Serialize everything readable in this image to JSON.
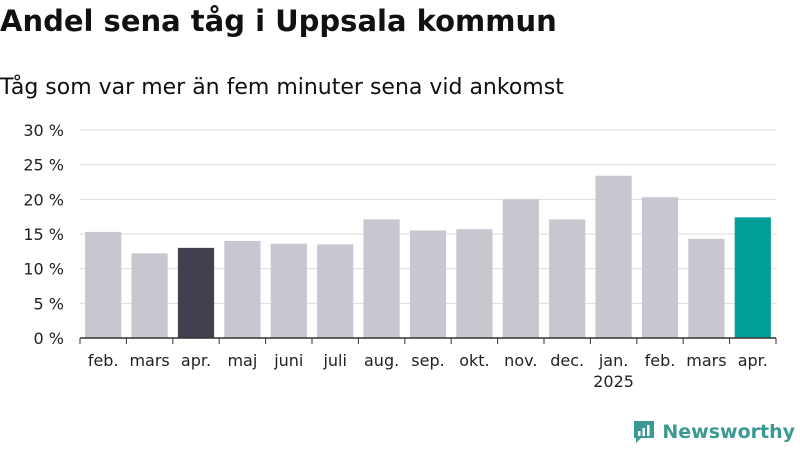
{
  "header": {
    "title": "Andel sena tåg i Uppsala kommun",
    "subtitle": "Tåg som var mer än fem minuter sena vid ankomst"
  },
  "brand": {
    "name": "Newsworthy",
    "icon": "newsworthy-logo-icon"
  },
  "colors": {
    "default_bar": "#c8c6cf",
    "previous_year_bar": "#42404f",
    "current_bar": "#009e96",
    "grid": "#dddddd",
    "axis": "#333333",
    "brand": "#3a9a92"
  },
  "chart_data": {
    "type": "bar",
    "categories": [
      "feb.",
      "mars",
      "apr.",
      "maj",
      "juni",
      "juli",
      "aug.",
      "sep.",
      "okt.",
      "nov.",
      "dec.",
      "jan.",
      "feb.",
      "mars",
      "apr."
    ],
    "values": [
      15.3,
      12.2,
      13.0,
      14.0,
      13.6,
      13.5,
      17.1,
      15.5,
      15.7,
      20.0,
      17.1,
      23.4,
      20.3,
      14.3,
      17.4
    ],
    "highlight": {
      "2": "previous_year_bar",
      "14": "current_bar"
    },
    "x_sublabels": {
      "11": "2025"
    },
    "y_ticks": [
      "0 %",
      "5 %",
      "10 %",
      "15 %",
      "20 %",
      "25 %",
      "30 %"
    ],
    "ylim": [
      0,
      30
    ],
    "grid": true,
    "legend": "none"
  }
}
